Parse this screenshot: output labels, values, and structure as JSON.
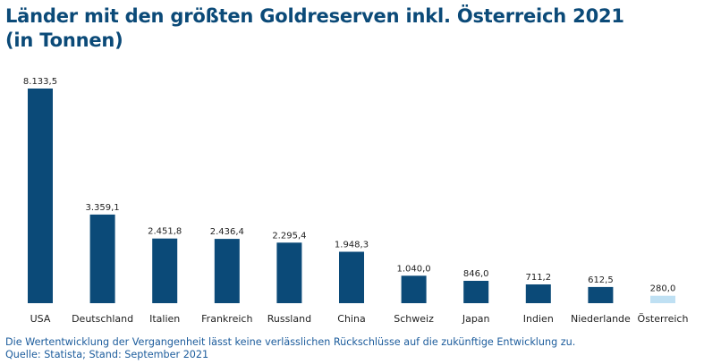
{
  "title": {
    "line1": "Länder mit den größten Goldreserven inkl. Österreich 2021",
    "line2": "(in Tonnen)"
  },
  "footer": {
    "disclaimer": "Die Wertentwicklung der Vergangenheit lässt keine verlässlichen Rückschlüsse auf die zukünftige Entwicklung zu.",
    "source": "Quelle: Statista; Stand: September 2021"
  },
  "colors": {
    "title": "#0b4a78",
    "bar": "#0b4a78",
    "bar_highlight": "#bfe0f3",
    "footer": "#1c5c9c",
    "baseline": "#cccccc"
  },
  "chart_data": {
    "type": "bar",
    "categories": [
      "USA",
      "Deutschland",
      "Italien",
      "Frankreich",
      "Russland",
      "China",
      "Schweiz",
      "Japan",
      "Indien",
      "Niederlande",
      "Österreich"
    ],
    "values": [
      8133.5,
      3359.1,
      2451.8,
      2436.4,
      2295.4,
      1948.3,
      1040.0,
      846.0,
      711.2,
      612.5,
      280.0
    ],
    "value_labels": [
      "8.133,5",
      "3.359,1",
      "2.451,8",
      "2.436,4",
      "2.295,4",
      "1.948,3",
      "1.040,0",
      "846,0",
      "711,2",
      "612,5",
      "280,0"
    ],
    "highlight": [
      "Österreich"
    ],
    "ylim": [
      0,
      8133.5
    ],
    "grid": false,
    "legend": "none"
  }
}
